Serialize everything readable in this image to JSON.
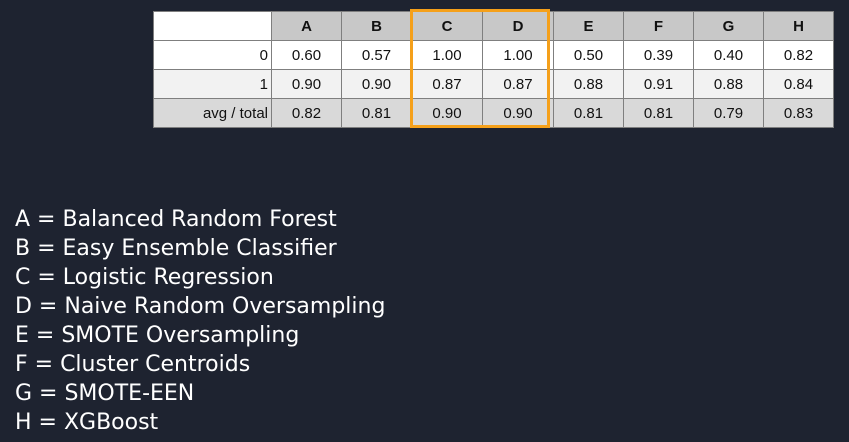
{
  "table": {
    "columns": [
      "A",
      "B",
      "C",
      "D",
      "E",
      "F",
      "G",
      "H"
    ],
    "rows": [
      {
        "label": "0",
        "values": [
          "0.60",
          "0.57",
          "1.00",
          "1.00",
          "0.50",
          "0.39",
          "0.40",
          "0.82"
        ]
      },
      {
        "label": "1",
        "values": [
          "0.90",
          "0.90",
          "0.87",
          "0.87",
          "0.88",
          "0.91",
          "0.88",
          "0.84"
        ]
      },
      {
        "label": "avg / total",
        "values": [
          "0.82",
          "0.81",
          "0.90",
          "0.90",
          "0.81",
          "0.81",
          "0.79",
          "0.83"
        ]
      }
    ],
    "highlighted_columns": [
      "C",
      "D"
    ],
    "highlight_color": "#f5a01a"
  },
  "legend": [
    "A = Balanced Random Forest",
    "B = Easy Ensemble Classifier",
    "C = Logistic Regression",
    "D = Naive Random Oversampling",
    "E = SMOTE Oversampling",
    "F = Cluster Centroids",
    "G = SMOTE-EEN",
    "H = XGBoost"
  ],
  "colors": {
    "background": "#1e2330",
    "header_fill": "#c8c8c8",
    "summary_row_fill": "#d9d9d9"
  }
}
